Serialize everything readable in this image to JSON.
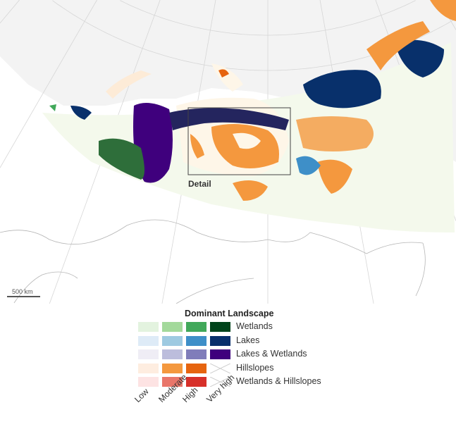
{
  "map": {
    "detail_label": "Detail",
    "scale_label": "500 km",
    "colors": {
      "ocean": "#f2f2f2",
      "land": "#ffffff",
      "graticule": "#d0d0d0",
      "border": "#aaaaaa"
    }
  },
  "legend": {
    "title": "Dominant Landscape",
    "levels": [
      "Low",
      "Moderate",
      "High",
      "Very high"
    ],
    "categories": [
      {
        "label": "Wetlands",
        "colors": [
          "#e3f3df",
          "#a3d99b",
          "#41a85a",
          "#00441b"
        ]
      },
      {
        "label": "Lakes",
        "colors": [
          "#deebf7",
          "#9ecae1",
          "#3e8fc8",
          "#08306b"
        ]
      },
      {
        "label": "Lakes & Wetlands",
        "colors": [
          "#efedf5",
          "#bcbddc",
          "#807dba",
          "#3f007d"
        ]
      },
      {
        "label": "Hillslopes",
        "colors": [
          "#feede0",
          "#f4983e",
          "#e6640f",
          null
        ]
      },
      {
        "label": "Wetlands & Hillslopes",
        "colors": [
          "#fde3e3",
          "#e9766a",
          "#d7302a",
          null
        ]
      }
    ]
  }
}
